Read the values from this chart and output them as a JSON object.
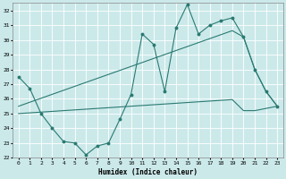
{
  "xlabel": "Humidex (Indice chaleur)",
  "x": [
    0,
    1,
    2,
    3,
    4,
    5,
    6,
    7,
    8,
    9,
    10,
    11,
    12,
    13,
    14,
    15,
    16,
    17,
    18,
    19,
    20,
    21,
    22,
    23
  ],
  "y_main": [
    27.5,
    26.7,
    25.0,
    24.0,
    23.1,
    23.0,
    22.2,
    22.8,
    23.0,
    24.6,
    26.3,
    30.4,
    29.7,
    26.5,
    30.8,
    32.4,
    30.4,
    31.0,
    31.3,
    31.5,
    30.2,
    28.0,
    26.5,
    25.5
  ],
  "y_trend_upper": [
    25.5,
    25.77,
    26.04,
    26.31,
    26.58,
    26.85,
    27.12,
    27.39,
    27.66,
    27.93,
    28.2,
    28.47,
    28.74,
    29.01,
    29.28,
    29.55,
    29.82,
    30.09,
    30.36,
    30.63,
    30.2,
    28.0,
    26.5,
    25.5
  ],
  "y_trend_lower": [
    25.0,
    25.05,
    25.1,
    25.15,
    25.2,
    25.25,
    25.3,
    25.35,
    25.4,
    25.45,
    25.5,
    25.55,
    25.6,
    25.65,
    25.7,
    25.75,
    25.8,
    25.85,
    25.9,
    25.95,
    25.2,
    25.2,
    25.35,
    25.5
  ],
  "ylim": [
    22,
    32.5
  ],
  "yticks": [
    22,
    23,
    24,
    25,
    26,
    27,
    28,
    29,
    30,
    31,
    32
  ],
  "xticks": [
    0,
    1,
    2,
    3,
    4,
    5,
    6,
    7,
    8,
    9,
    10,
    11,
    12,
    13,
    14,
    15,
    16,
    17,
    18,
    19,
    20,
    21,
    22,
    23
  ],
  "bg_color": "#cce9ea",
  "grid_color": "#ffffff",
  "line_color": "#2a7a72"
}
